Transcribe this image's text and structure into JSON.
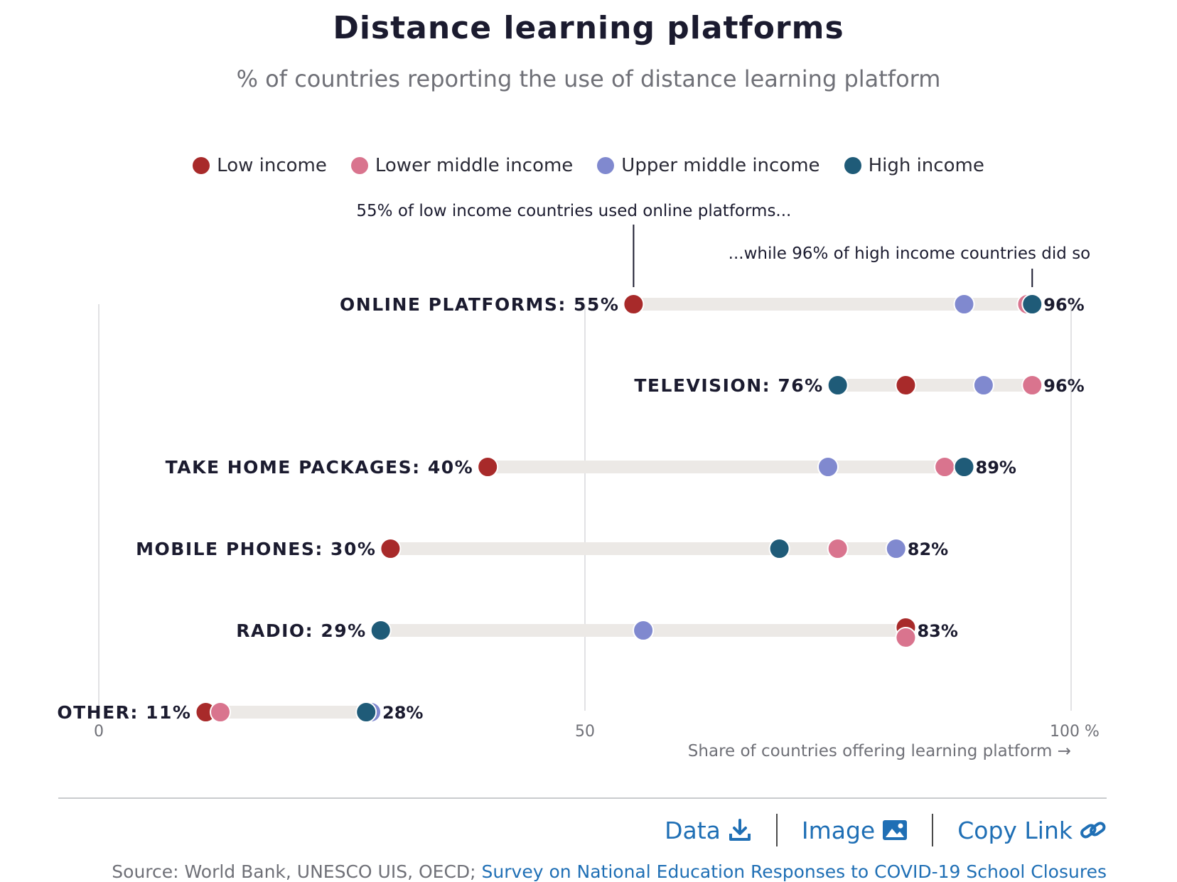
{
  "title": "Distance learning platforms",
  "subtitle": "% of countries reporting the use of distance learning platform",
  "legend": [
    {
      "label": "Low income",
      "color": "#a82a2a"
    },
    {
      "label": "Lower middle income",
      "color": "#d9748e"
    },
    {
      "label": "Upper middle income",
      "color": "#8089cf"
    },
    {
      "label": "High income",
      "color": "#1f5b78"
    }
  ],
  "annotations": {
    "low": "55% of low income countries used online platforms...",
    "high": "...while 96% of high income countries did so"
  },
  "footer": {
    "data_label": "Data",
    "image_label": "Image",
    "copy_label": "Copy Link",
    "source_prefix": "Source: World Bank, UNESCO UIS, OECD; ",
    "source_link": "Survey on National Education Responses to COVID-19 School Closures"
  },
  "chart_data": {
    "type": "dot-range",
    "title": "Distance learning platforms",
    "xlabel": "Share of countries offering learning platform →",
    "xlim": [
      0,
      100
    ],
    "ticks": [
      "0",
      "50",
      "100 %"
    ],
    "series_names": [
      "Low income",
      "Lower middle income",
      "Upper middle income",
      "High income"
    ],
    "categories": [
      {
        "name": "ONLINE PLATFORMS",
        "min_label": "55%",
        "max_label": "96%",
        "values": [
          55,
          95.5,
          89,
          96
        ]
      },
      {
        "name": "TELEVISION",
        "min_label": "76%",
        "max_label": "96%",
        "values": [
          83,
          96,
          91,
          76
        ]
      },
      {
        "name": "TAKE HOME PACKAGES",
        "min_label": "40%",
        "max_label": "89%",
        "values": [
          40,
          87,
          75,
          89
        ]
      },
      {
        "name": "MOBILE PHONES",
        "min_label": "30%",
        "max_label": "82%",
        "values": [
          30,
          76,
          82,
          70
        ]
      },
      {
        "name": "RADIO",
        "min_label": "29%",
        "max_label": "83%",
        "values": [
          83,
          83,
          56,
          29
        ]
      },
      {
        "name": "OTHER",
        "min_label": "11%",
        "max_label": "28%",
        "values": [
          11,
          12.5,
          28,
          27.5
        ]
      }
    ]
  }
}
